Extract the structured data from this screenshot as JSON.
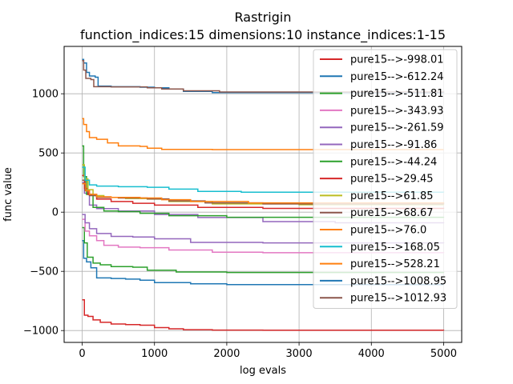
{
  "chart_data": {
    "type": "line",
    "title": "Rastrigin",
    "subtitle": "function_indices:15 dimensions:10 instance_indices:1-15",
    "xlabel": "log evals",
    "ylabel": "func value",
    "xlim": [
      -250,
      5250
    ],
    "ylim": [
      -1100,
      1400
    ],
    "xticks": [
      0,
      1000,
      2000,
      3000,
      4000,
      5000
    ],
    "yticks": [
      -1000,
      -500,
      0,
      500,
      1000
    ],
    "grid": true,
    "legend_position": "top-right",
    "series": [
      {
        "name": "pure15-->-998.01",
        "color": "#d62728",
        "points": [
          [
            0,
            -740
          ],
          [
            30,
            -870
          ],
          [
            80,
            -880
          ],
          [
            150,
            -910
          ],
          [
            250,
            -930
          ],
          [
            400,
            -945
          ],
          [
            600,
            -950
          ],
          [
            800,
            -955
          ],
          [
            1000,
            -975
          ],
          [
            1200,
            -985
          ],
          [
            1400,
            -993
          ],
          [
            1800,
            -996
          ],
          [
            2500,
            -997
          ],
          [
            5000,
            -998
          ]
        ]
      },
      {
        "name": "pure15-->-612.24",
        "color": "#1f77b4",
        "points": [
          [
            0,
            -240
          ],
          [
            20,
            -390
          ],
          [
            60,
            -420
          ],
          [
            120,
            -470
          ],
          [
            200,
            -555
          ],
          [
            400,
            -560
          ],
          [
            600,
            -565
          ],
          [
            800,
            -575
          ],
          [
            1000,
            -595
          ],
          [
            1500,
            -605
          ],
          [
            2000,
            -612
          ],
          [
            5000,
            -612
          ]
        ]
      },
      {
        "name": "pure15-->-511.81",
        "color": "#2ca02c",
        "points": [
          [
            0,
            -130
          ],
          [
            30,
            -260
          ],
          [
            70,
            -380
          ],
          [
            150,
            -430
          ],
          [
            250,
            -445
          ],
          [
            400,
            -460
          ],
          [
            700,
            -465
          ],
          [
            900,
            -490
          ],
          [
            1300,
            -505
          ],
          [
            2000,
            -510
          ],
          [
            5000,
            -511
          ]
        ]
      },
      {
        "name": "pure15-->-343.93",
        "color": "#e377c2",
        "points": [
          [
            0,
            -60
          ],
          [
            40,
            -160
          ],
          [
            100,
            -200
          ],
          [
            200,
            -240
          ],
          [
            300,
            -280
          ],
          [
            500,
            -295
          ],
          [
            800,
            -300
          ],
          [
            1200,
            -320
          ],
          [
            1800,
            -338
          ],
          [
            2500,
            -342
          ],
          [
            5000,
            -344
          ]
        ]
      },
      {
        "name": "pure15-->-261.59",
        "color": "#9467bd",
        "points": [
          [
            0,
            -20
          ],
          [
            40,
            -90
          ],
          [
            100,
            -140
          ],
          [
            200,
            -180
          ],
          [
            400,
            -205
          ],
          [
            700,
            -210
          ],
          [
            1000,
            -225
          ],
          [
            1500,
            -255
          ],
          [
            2500,
            -260
          ],
          [
            5000,
            -262
          ]
        ]
      },
      {
        "name": "pure15-->-91.86",
        "color": "#9467bd",
        "points": [
          [
            0,
            250
          ],
          [
            30,
            160
          ],
          [
            100,
            60
          ],
          [
            200,
            30
          ],
          [
            500,
            10
          ],
          [
            1000,
            -20
          ],
          [
            1600,
            -45
          ],
          [
            2500,
            -80
          ],
          [
            3500,
            -90
          ],
          [
            5000,
            -92
          ]
        ]
      },
      {
        "name": "pure15-->-44.24",
        "color": "#2ca02c",
        "points": [
          [
            0,
            560
          ],
          [
            20,
            300
          ],
          [
            60,
            150
          ],
          [
            150,
            40
          ],
          [
            300,
            10
          ],
          [
            500,
            5
          ],
          [
            800,
            -10
          ],
          [
            1200,
            -30
          ],
          [
            2000,
            -43
          ],
          [
            5000,
            -44
          ]
        ]
      },
      {
        "name": "pure15-->29.45",
        "color": "#d62728",
        "points": [
          [
            0,
            310
          ],
          [
            30,
            200
          ],
          [
            80,
            150
          ],
          [
            200,
            110
          ],
          [
            400,
            90
          ],
          [
            700,
            75
          ],
          [
            1000,
            60
          ],
          [
            1600,
            40
          ],
          [
            2500,
            32
          ],
          [
            5000,
            29
          ]
        ]
      },
      {
        "name": "pure15-->61.85",
        "color": "#bcbd22",
        "points": [
          [
            0,
            400
          ],
          [
            30,
            280
          ],
          [
            80,
            190
          ],
          [
            150,
            140
          ],
          [
            300,
            125
          ],
          [
            600,
            115
          ],
          [
            900,
            110
          ],
          [
            1200,
            90
          ],
          [
            1800,
            70
          ],
          [
            3000,
            63
          ],
          [
            5000,
            62
          ]
        ]
      },
      {
        "name": "pure15-->68.67",
        "color": "#8c564b",
        "points": [
          [
            0,
            270
          ],
          [
            40,
            180
          ],
          [
            100,
            140
          ],
          [
            200,
            125
          ],
          [
            500,
            120
          ],
          [
            900,
            112
          ],
          [
            1200,
            95
          ],
          [
            1700,
            78
          ],
          [
            2500,
            70
          ],
          [
            5000,
            69
          ]
        ]
      },
      {
        "name": "pure15-->76.0",
        "color": "#ff7f0e",
        "points": [
          [
            0,
            240
          ],
          [
            50,
            180
          ],
          [
            100,
            150
          ],
          [
            200,
            130
          ],
          [
            400,
            125
          ],
          [
            800,
            120
          ],
          [
            1100,
            105
          ],
          [
            1500,
            90
          ],
          [
            2300,
            78
          ],
          [
            5000,
            76
          ]
        ]
      },
      {
        "name": "pure15-->168.05",
        "color": "#17becf",
        "points": [
          [
            0,
            380
          ],
          [
            40,
            270
          ],
          [
            100,
            230
          ],
          [
            200,
            220
          ],
          [
            500,
            215
          ],
          [
            900,
            210
          ],
          [
            1200,
            195
          ],
          [
            1600,
            175
          ],
          [
            2200,
            169
          ],
          [
            5000,
            168
          ]
        ]
      },
      {
        "name": "pure15-->528.21",
        "color": "#ff7f0e",
        "points": [
          [
            0,
            790
          ],
          [
            20,
            740
          ],
          [
            60,
            680
          ],
          [
            100,
            630
          ],
          [
            200,
            615
          ],
          [
            350,
            585
          ],
          [
            500,
            560
          ],
          [
            800,
            555
          ],
          [
            900,
            540
          ],
          [
            1100,
            530
          ],
          [
            1800,
            528
          ],
          [
            5000,
            528
          ]
        ]
      },
      {
        "name": "pure15-->1008.95",
        "color": "#1f77b4",
        "points": [
          [
            0,
            1290
          ],
          [
            20,
            1260
          ],
          [
            60,
            1180
          ],
          [
            100,
            1150
          ],
          [
            180,
            1140
          ],
          [
            220,
            1065
          ],
          [
            400,
            1060
          ],
          [
            800,
            1055
          ],
          [
            1000,
            1050
          ],
          [
            1200,
            1040
          ],
          [
            1400,
            1020
          ],
          [
            1800,
            1010
          ],
          [
            5000,
            1009
          ]
        ]
      },
      {
        "name": "pure15-->1012.93",
        "color": "#8c564b",
        "points": [
          [
            0,
            1280
          ],
          [
            20,
            1200
          ],
          [
            50,
            1130
          ],
          [
            120,
            1120
          ],
          [
            160,
            1060
          ],
          [
            400,
            1058
          ],
          [
            900,
            1050
          ],
          [
            1100,
            1040
          ],
          [
            1400,
            1025
          ],
          [
            1900,
            1015
          ],
          [
            5000,
            1013
          ]
        ]
      }
    ]
  }
}
